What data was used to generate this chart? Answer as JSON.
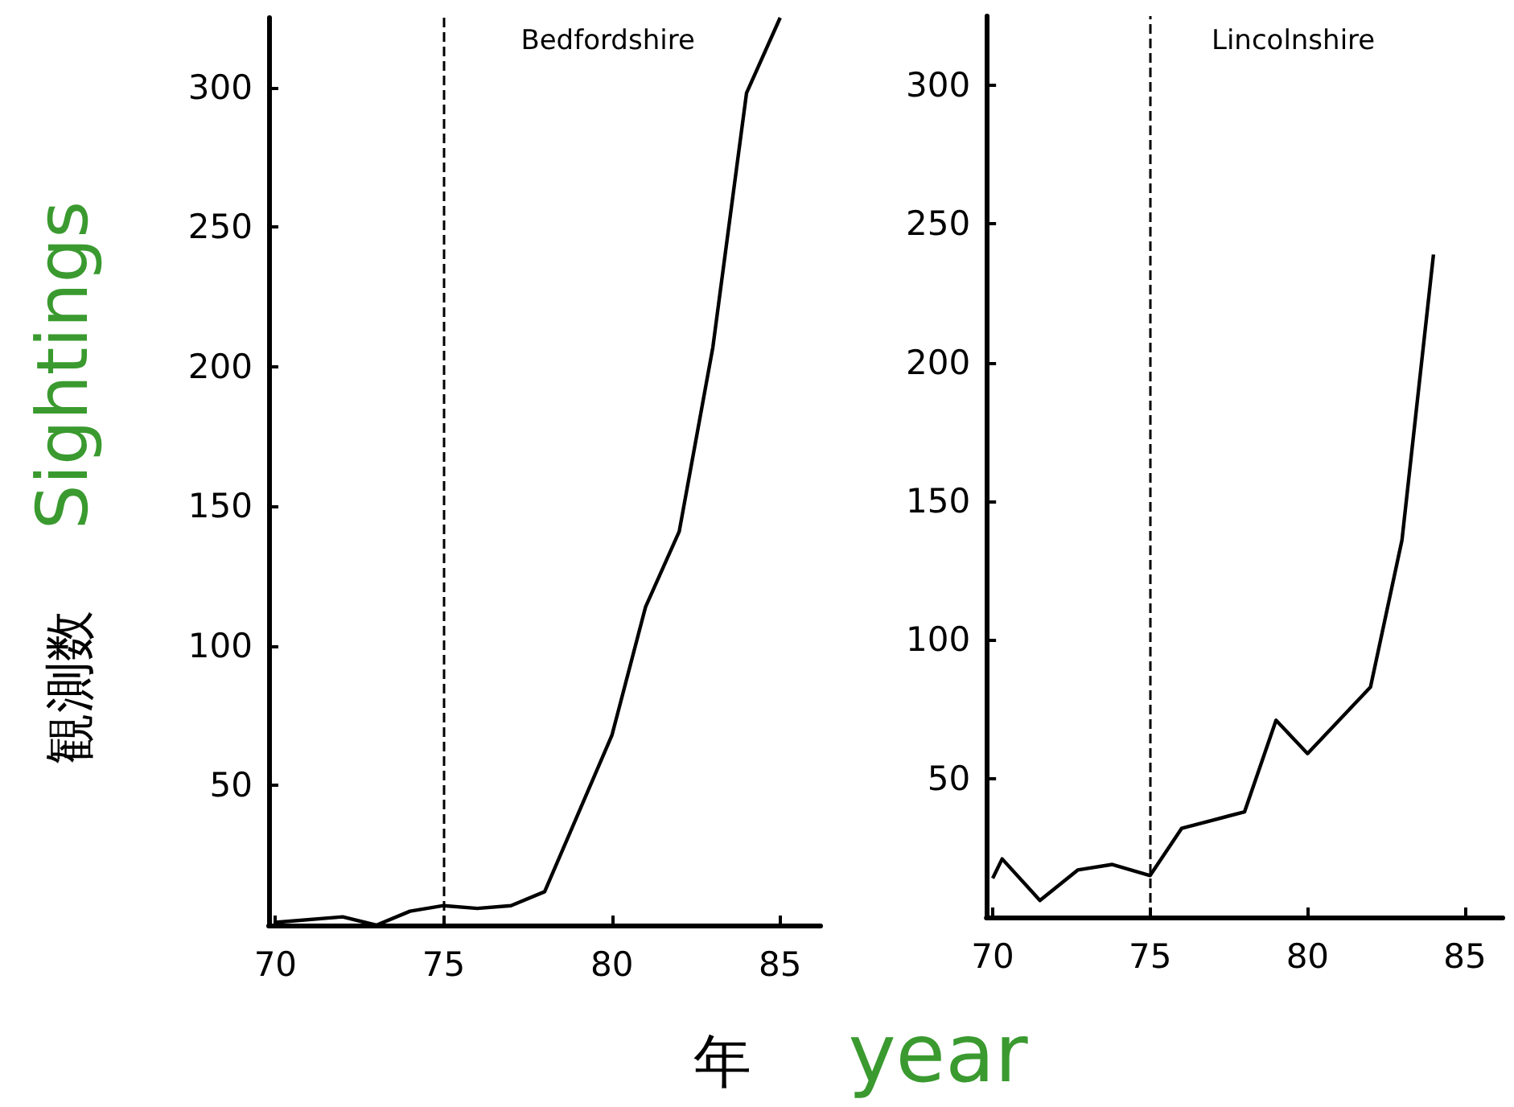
{
  "chart_data": [
    {
      "type": "line",
      "title": "Bedfordshire",
      "ylabel": "観測数 Sightings",
      "xlabel": "年 year",
      "series": [
        {
          "color": "#000000",
          "x": [
            70,
            72,
            73,
            74,
            75,
            76,
            77,
            78,
            80,
            81,
            82,
            83,
            84,
            85
          ],
          "values": [
            1,
            3,
            0,
            5,
            7,
            6,
            7,
            12,
            68,
            114,
            141,
            207,
            298,
            325
          ]
        }
      ],
      "xlim": [
        69.8,
        86.2
      ],
      "xticks": [
        70,
        75,
        80,
        85
      ],
      "ylim": [
        0,
        325
      ],
      "yticks": [
        50,
        100,
        150,
        200,
        250,
        300
      ],
      "ref_lines": [
        {
          "axis": "x",
          "value": 75,
          "line_style": "dashed"
        }
      ],
      "grid": false,
      "marker": "none",
      "line_style": "solid"
    },
    {
      "type": "line",
      "title": "Lincolnshire",
      "series": [
        {
          "color": "#000000",
          "x": [
            70,
            70.3,
            71.5,
            72.7,
            73.8,
            75,
            76,
            78,
            79,
            80,
            82,
            83,
            84
          ],
          "values": [
            14,
            21,
            6,
            17,
            19,
            15,
            32,
            38,
            71,
            59,
            83,
            136,
            239
          ]
        }
      ],
      "xlim": [
        69.8,
        86.2
      ],
      "xticks": [
        70,
        75,
        80,
        85
      ],
      "ylim": [
        0,
        325
      ],
      "yticks": [
        50,
        100,
        150,
        200,
        250,
        300
      ],
      "ref_lines": [
        {
          "axis": "x",
          "value": 75,
          "line_style": "dashed"
        }
      ],
      "grid": false,
      "marker": "none",
      "line_style": "solid"
    }
  ]
}
